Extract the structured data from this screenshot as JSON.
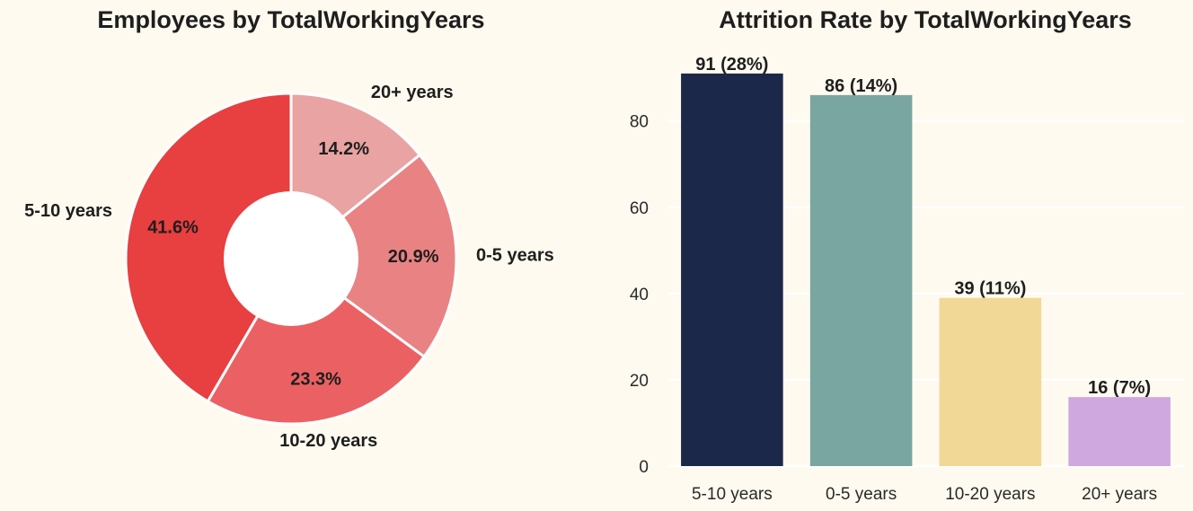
{
  "chart_data": [
    {
      "type": "pie",
      "donut": true,
      "title": "Employees by TotalWorkingYears",
      "categories": [
        "5-10 years",
        "10-20 years",
        "0-5 years",
        "20+ years"
      ],
      "values": [
        41.6,
        23.3,
        20.9,
        14.2
      ],
      "value_labels": [
        "41.6%",
        "23.3%",
        "20.9%",
        "14.2%"
      ],
      "colors": [
        "#e83f40",
        "#eb6163",
        "#e98283",
        "#e8a3a2"
      ]
    },
    {
      "type": "bar",
      "title": "Attrition Rate by TotalWorkingYears",
      "categories": [
        "5-10 years",
        "0-5 years",
        "10-20 years",
        "20+ years"
      ],
      "values": [
        91,
        86,
        39,
        16
      ],
      "value_labels": [
        "91 (28%)",
        "86 (14%)",
        "39 (11%)",
        "16 (7%)"
      ],
      "colors": [
        "#1b2849",
        "#79a6a0",
        "#f1d896",
        "#cfa8df"
      ],
      "ylim": [
        0,
        95.55
      ],
      "yticks": [
        0,
        20,
        40,
        60,
        80
      ],
      "grid": true
    }
  ]
}
